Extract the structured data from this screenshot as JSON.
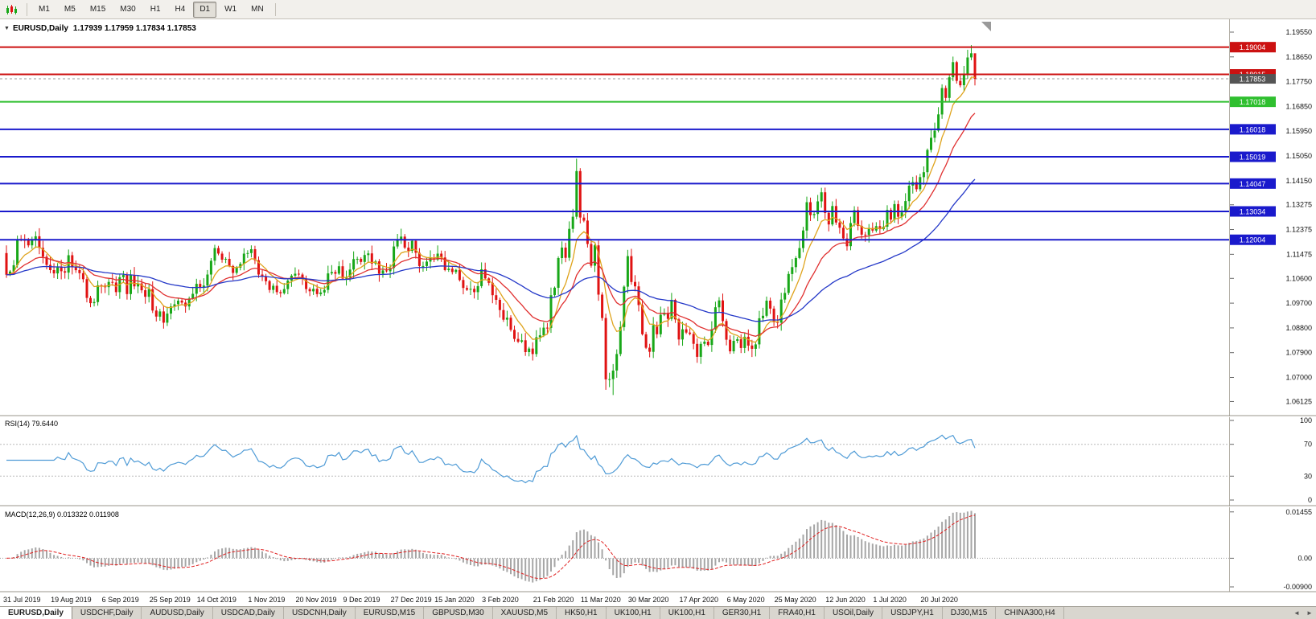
{
  "toolbar": {
    "timeframes": [
      {
        "label": "M1",
        "active": false
      },
      {
        "label": "M5",
        "active": false
      },
      {
        "label": "M15",
        "active": false
      },
      {
        "label": "M30",
        "active": false
      },
      {
        "label": "H1",
        "active": false
      },
      {
        "label": "H4",
        "active": false
      },
      {
        "label": "D1",
        "active": true
      },
      {
        "label": "W1",
        "active": false
      },
      {
        "label": "MN",
        "active": false
      }
    ]
  },
  "chart": {
    "symbol_title": "EURUSD,Daily",
    "ohlc_text": "1.17939 1.17959 1.17834 1.17853",
    "collapse_icon": "▼",
    "current_price": {
      "label": "1.17853",
      "price": 1.17853,
      "color": "#555555"
    }
  },
  "axis": {
    "price_ticks": [
      "1.19550",
      "1.18650",
      "1.17750",
      "1.16850",
      "1.15950",
      "1.15050",
      "1.14150",
      "1.13275",
      "1.12375",
      "1.11475",
      "1.10600",
      "1.09700",
      "1.08800",
      "1.07900",
      "1.07000",
      "1.06125"
    ]
  },
  "rsi": {
    "label": "RSI(14) 79.6440"
  },
  "macd": {
    "label": "MACD(12,26,9) 0.013322 0.011908"
  },
  "colors": {
    "up": "#18a718",
    "down": "#e01212"
  },
  "tab_nav": {
    "left": "◄",
    "right": "►"
  },
  "tabs": [
    {
      "label": "EURUSD,Daily",
      "active": true
    },
    {
      "label": "USDCHF,Daily",
      "active": false
    },
    {
      "label": "AUDUSD,Daily",
      "active": false
    },
    {
      "label": "USDCAD,Daily",
      "active": false
    },
    {
      "label": "USDCNH,Daily",
      "active": false
    },
    {
      "label": "EURUSD,M15",
      "active": false
    },
    {
      "label": "GBPUSD,M30",
      "active": false
    },
    {
      "label": "XAUUSD,M5",
      "active": false
    },
    {
      "label": "HK50,H1",
      "active": false
    },
    {
      "label": "UK100,H1",
      "active": false
    },
    {
      "label": "UK100,H1",
      "active": false
    },
    {
      "label": "GER30,H1",
      "active": false
    },
    {
      "label": "FRA40,H1",
      "active": false
    },
    {
      "label": "USOil,Daily",
      "active": false
    },
    {
      "label": "USDJPY,H1",
      "active": false
    },
    {
      "label": "DJ30,M15",
      "active": false
    },
    {
      "label": "CHINA300,H4",
      "active": false
    }
  ],
  "chart_data": {
    "type": "candlestick",
    "symbol": "EURUSD",
    "timeframe": "Daily",
    "y_range": [
      1.057,
      1.199
    ],
    "first_open": 1.1152,
    "closes": [
      1.1073,
      1.1085,
      1.1108,
      1.1202,
      1.12,
      1.1199,
      1.118,
      1.1199,
      1.1213,
      1.1171,
      1.1139,
      1.1109,
      1.109,
      1.1078,
      1.11,
      1.1086,
      1.1081,
      1.1144,
      1.1101,
      1.109,
      1.1079,
      1.1057,
      1.0989,
      1.097,
      1.0974,
      1.1035,
      1.1034,
      1.1028,
      1.1047,
      1.1045,
      1.101,
      1.1064,
      1.1073,
      1.1003,
      1.1072,
      1.1031,
      1.1042,
      1.1017,
      1.0993,
      1.1021,
      1.0943,
      1.0921,
      1.094,
      1.0899,
      1.0932,
      1.0958,
      1.0966,
      1.0979,
      1.0972,
      1.0958,
      1.0987,
      1.1004,
      1.104,
      1.1028,
      1.1034,
      1.1074,
      1.1124,
      1.117,
      1.115,
      1.1128,
      1.1131,
      1.1105,
      1.108,
      1.1099,
      1.1113,
      1.115,
      1.1152,
      1.1166,
      1.1126,
      1.1074,
      1.1068,
      1.105,
      1.1018,
      1.1033,
      1.101,
      1.1006,
      1.1021,
      1.1052,
      1.107,
      1.1077,
      1.1074,
      1.1059,
      1.1021,
      1.1013,
      1.1022,
      1.1003,
      1.1009,
      1.1018,
      1.1078,
      1.1083,
      1.1077,
      1.1104,
      1.1059,
      1.1064,
      1.1092,
      1.113,
      1.1131,
      1.112,
      1.1145,
      1.1151,
      1.1114,
      1.1122,
      1.1077,
      1.1089,
      1.1086,
      1.1098,
      1.1176,
      1.1199,
      1.1212,
      1.1172,
      1.116,
      1.1196,
      1.1153,
      1.1105,
      1.1105,
      1.1121,
      1.1134,
      1.1128,
      1.115,
      1.1136,
      1.109,
      1.1095,
      1.1083,
      1.1091,
      1.1054,
      1.1025,
      1.1019,
      1.1022,
      1.101,
      1.1032,
      1.1093,
      1.106,
      1.1044,
      1.0999,
      1.0982,
      1.0945,
      1.091,
      1.0917,
      1.0873,
      1.084,
      1.083,
      1.0835,
      1.0792,
      1.0805,
      1.0785,
      1.0846,
      1.0853,
      1.0881,
      1.088,
      1.0999,
      1.1026,
      1.1134,
      1.1172,
      1.1135,
      1.124,
      1.1284,
      1.145,
      1.1281,
      1.127,
      1.1185,
      1.1106,
      1.118,
      1.1001,
      1.0916,
      1.0693,
      1.0694,
      1.0725,
      1.0785,
      1.0883,
      1.103,
      1.1141,
      1.1047,
      1.1031,
      1.0963,
      1.0857,
      1.0808,
      1.0793,
      1.089,
      1.0857,
      1.0928,
      1.0935,
      1.0913,
      1.0982,
      1.0911,
      1.0838,
      1.0875,
      1.0863,
      1.0858,
      1.0822,
      1.0775,
      1.0822,
      1.083,
      1.0818,
      1.0875,
      1.0955,
      1.098,
      1.0905,
      1.0837,
      1.0795,
      1.0833,
      1.0839,
      1.0807,
      1.0848,
      1.0816,
      1.0804,
      1.082,
      1.0915,
      1.0924,
      1.0979,
      1.095,
      1.0901,
      1.0899,
      1.0983,
      1.1007,
      1.1076,
      1.1101,
      1.1134,
      1.117,
      1.1234,
      1.1337,
      1.129,
      1.1294,
      1.134,
      1.1373,
      1.1298,
      1.1256,
      1.1323,
      1.1263,
      1.1244,
      1.1205,
      1.1177,
      1.1261,
      1.1308,
      1.1251,
      1.1219,
      1.1218,
      1.1243,
      1.1234,
      1.125,
      1.1239,
      1.1248,
      1.1309,
      1.1274,
      1.133,
      1.1284,
      1.13,
      1.1341,
      1.1397,
      1.141,
      1.1384,
      1.1428,
      1.1446,
      1.1527,
      1.1571,
      1.1597,
      1.1656,
      1.1752,
      1.1716,
      1.1791,
      1.1846,
      1.1778,
      1.1762,
      1.1803,
      1.1863,
      1.1878,
      1.1785
    ],
    "wick_overrides": {
      "0": {
        "low": 1.1062
      },
      "156": {
        "high": 1.1495
      },
      "164": {
        "low": 1.0655
      },
      "166": {
        "low": 1.0636
      },
      "264": {
        "high": 1.1908
      },
      "265": {
        "high": 1.1802
      }
    },
    "x_tick_indices": [
      0,
      13,
      27,
      40,
      53,
      67,
      80,
      93,
      106,
      118,
      131,
      145,
      158,
      171,
      185,
      198,
      211,
      225,
      238,
      251
    ],
    "x_tick_labels": [
      "31 Jul 2019",
      "19 Aug 2019",
      "6 Sep 2019",
      "25 Sep 2019",
      "14 Oct 2019",
      "1 Nov 2019",
      "20 Nov 2019",
      "9 Dec 2019",
      "27 Dec 2019",
      "15 Jan 2020",
      "3 Feb 2020",
      "21 Feb 2020",
      "11 Mar 2020",
      "30 Mar 2020",
      "17 Apr 2020",
      "6 May 2020",
      "25 May 2020",
      "12 Jun 2020",
      "1 Jul 2020",
      "20 Jul 2020"
    ],
    "levels": [
      {
        "price": 1.19004,
        "label": "1.19004",
        "color": "#cc1111"
      },
      {
        "price": 1.18015,
        "label": "1.18015",
        "color": "#cc1111"
      },
      {
        "price": 1.17018,
        "label": "1.17018",
        "color": "#2fbf2f"
      },
      {
        "price": 1.16018,
        "label": "1.16018",
        "color": "#1a1acc"
      },
      {
        "price": 1.15019,
        "label": "1.15019",
        "color": "#1a1acc"
      },
      {
        "price": 1.14047,
        "label": "1.14047",
        "color": "#1a1acc"
      },
      {
        "price": 1.13034,
        "label": "1.13034",
        "color": "#1a1acc"
      },
      {
        "price": 1.12004,
        "label": "1.12004",
        "color": "#1a1acc"
      }
    ],
    "indicators": {
      "ma": [
        {
          "name": "ma-fast-orange",
          "period": 8,
          "color": "#dfa31c"
        },
        {
          "name": "ma-mid-red",
          "period": 20,
          "color": "#e03030"
        },
        {
          "name": "ma-slow-blue",
          "period": 55,
          "color": "#2438c8"
        }
      ],
      "rsi": {
        "period": 14,
        "current": "79.6440",
        "levels": [
          100,
          70,
          30,
          0
        ],
        "color": "#4f9bd6"
      },
      "macd": {
        "fast": 12,
        "slow": 26,
        "signal": 9,
        "values_text": "0.013322 0.011908",
        "hist_color": "#a6a6a6",
        "signal_color": "#e02020",
        "axis": [
          "0.01455",
          "0.00",
          "-0.00900"
        ]
      }
    }
  }
}
